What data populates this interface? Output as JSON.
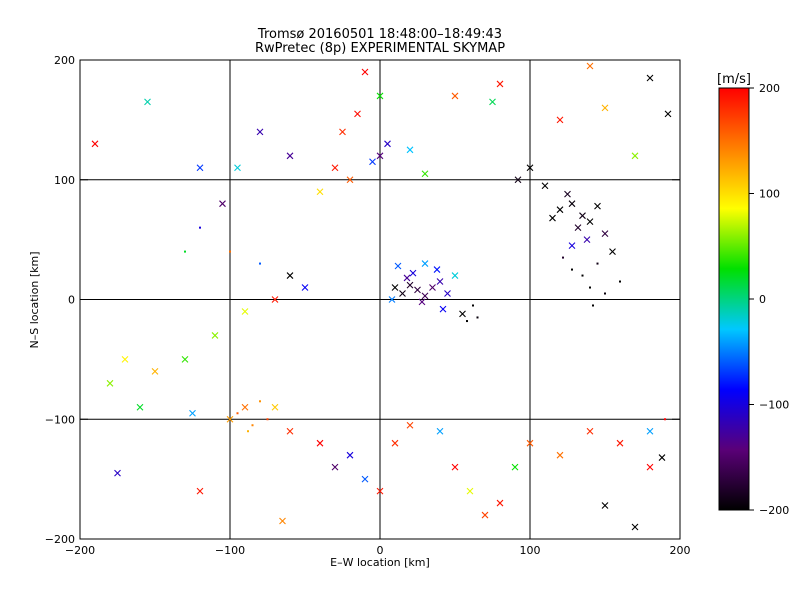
{
  "chart_data": {
    "type": "scatter",
    "title": "Tromsø 20160501 18:48:00–18:49:43",
    "subtitle": "RwPretec (8p) EXPERIMENTAL SKYMAP",
    "xlabel": "E–W location [km]",
    "ylabel": "N–S location [km]",
    "xlim": [
      -200,
      200
    ],
    "ylim": [
      -200,
      200
    ],
    "xticks": [
      -200,
      -100,
      0,
      100,
      200
    ],
    "yticks": [
      -200,
      -100,
      0,
      100,
      200
    ],
    "grid": true,
    "colorbar": {
      "label": "[m/s]",
      "range": [
        -200,
        200
      ],
      "ticks": [
        200,
        100,
        0,
        -100,
        -200
      ],
      "colors": [
        "#000000",
        "#5a0078",
        "#0000ff",
        "#00c8ff",
        "#00e000",
        "#ffff00",
        "#ff8000",
        "#ff0000"
      ]
    },
    "marker_types": [
      "x",
      "dot"
    ],
    "points": [
      {
        "x": 120,
        "y": 75,
        "v": -200,
        "m": "x"
      },
      {
        "x": 128,
        "y": 80,
        "v": -195,
        "m": "x"
      },
      {
        "x": 135,
        "y": 70,
        "v": -190,
        "m": "x"
      },
      {
        "x": 140,
        "y": 65,
        "v": -200,
        "m": "x"
      },
      {
        "x": 132,
        "y": 60,
        "v": -180,
        "m": "x"
      },
      {
        "x": 115,
        "y": 68,
        "v": -200,
        "m": "x"
      },
      {
        "x": 125,
        "y": 88,
        "v": -185,
        "m": "x"
      },
      {
        "x": 145,
        "y": 78,
        "v": -200,
        "m": "x"
      },
      {
        "x": 150,
        "y": 55,
        "v": -170,
        "m": "x"
      },
      {
        "x": 110,
        "y": 95,
        "v": -200,
        "m": "x"
      },
      {
        "x": 138,
        "y": 50,
        "v": -120,
        "m": "x"
      },
      {
        "x": 128,
        "y": 45,
        "v": -100,
        "m": "x"
      },
      {
        "x": 135,
        "y": 20,
        "v": -200,
        "m": "dot"
      },
      {
        "x": 140,
        "y": 10,
        "v": -200,
        "m": "dot"
      },
      {
        "x": 150,
        "y": 5,
        "v": -195,
        "m": "dot"
      },
      {
        "x": 128,
        "y": 25,
        "v": -200,
        "m": "dot"
      },
      {
        "x": 145,
        "y": 30,
        "v": -190,
        "m": "dot"
      },
      {
        "x": 160,
        "y": 15,
        "v": -200,
        "m": "dot"
      },
      {
        "x": 142,
        "y": -5,
        "v": -200,
        "m": "dot"
      },
      {
        "x": 122,
        "y": 35,
        "v": -180,
        "m": "dot"
      },
      {
        "x": 155,
        "y": 40,
        "v": -200,
        "m": "x"
      },
      {
        "x": 100,
        "y": 110,
        "v": -200,
        "m": "x"
      },
      {
        "x": 92,
        "y": 100,
        "v": -190,
        "m": "x"
      },
      {
        "x": 180,
        "y": 185,
        "v": -200,
        "m": "x"
      },
      {
        "x": 192,
        "y": 155,
        "v": -200,
        "m": "x"
      },
      {
        "x": 170,
        "y": -190,
        "v": -200,
        "m": "x"
      },
      {
        "x": 150,
        "y": -172,
        "v": -200,
        "m": "x"
      },
      {
        "x": 188,
        "y": -132,
        "v": -200,
        "m": "x"
      },
      {
        "x": 10,
        "y": 10,
        "v": -200,
        "m": "x"
      },
      {
        "x": 15,
        "y": 5,
        "v": -190,
        "m": "x"
      },
      {
        "x": 20,
        "y": 12,
        "v": -180,
        "m": "x"
      },
      {
        "x": 25,
        "y": 8,
        "v": -170,
        "m": "x"
      },
      {
        "x": 30,
        "y": 3,
        "v": -160,
        "m": "x"
      },
      {
        "x": 35,
        "y": 10,
        "v": -150,
        "m": "x"
      },
      {
        "x": 28,
        "y": -2,
        "v": -140,
        "m": "x"
      },
      {
        "x": 18,
        "y": 18,
        "v": -130,
        "m": "x"
      },
      {
        "x": 40,
        "y": 15,
        "v": -120,
        "m": "x"
      },
      {
        "x": 45,
        "y": 5,
        "v": -110,
        "m": "x"
      },
      {
        "x": 22,
        "y": 22,
        "v": -100,
        "m": "x"
      },
      {
        "x": 38,
        "y": 25,
        "v": -80,
        "m": "x"
      },
      {
        "x": 12,
        "y": 28,
        "v": -60,
        "m": "x"
      },
      {
        "x": 30,
        "y": 30,
        "v": -40,
        "m": "x"
      },
      {
        "x": 50,
        "y": 20,
        "v": -20,
        "m": "x"
      },
      {
        "x": 8,
        "y": 0,
        "v": -50,
        "m": "x"
      },
      {
        "x": 42,
        "y": -8,
        "v": -90,
        "m": "x"
      },
      {
        "x": 55,
        "y": -12,
        "v": -200,
        "m": "x"
      },
      {
        "x": 58,
        "y": -18,
        "v": -200,
        "m": "dot"
      },
      {
        "x": 62,
        "y": -5,
        "v": -200,
        "m": "dot"
      },
      {
        "x": 65,
        "y": -15,
        "v": -195,
        "m": "dot"
      },
      {
        "x": 0,
        "y": 120,
        "v": -140,
        "m": "x"
      },
      {
        "x": 5,
        "y": 130,
        "v": -110,
        "m": "x"
      },
      {
        "x": -5,
        "y": 115,
        "v": -70,
        "m": "x"
      },
      {
        "x": 20,
        "y": 125,
        "v": -30,
        "m": "x"
      },
      {
        "x": 30,
        "y": 105,
        "v": 40,
        "m": "x"
      },
      {
        "x": -20,
        "y": 100,
        "v": 160,
        "m": "x"
      },
      {
        "x": -30,
        "y": 110,
        "v": 190,
        "m": "x"
      },
      {
        "x": -25,
        "y": 140,
        "v": 180,
        "m": "x"
      },
      {
        "x": -15,
        "y": 155,
        "v": 195,
        "m": "x"
      },
      {
        "x": -40,
        "y": 90,
        "v": 100,
        "m": "x"
      },
      {
        "x": -60,
        "y": 120,
        "v": -130,
        "m": "x"
      },
      {
        "x": -80,
        "y": 140,
        "v": -120,
        "m": "x"
      },
      {
        "x": -95,
        "y": 110,
        "v": -20,
        "m": "x"
      },
      {
        "x": -105,
        "y": 80,
        "v": -150,
        "m": "x"
      },
      {
        "x": -120,
        "y": 60,
        "v": -100,
        "m": "dot"
      },
      {
        "x": -130,
        "y": 40,
        "v": 20,
        "m": "dot"
      },
      {
        "x": -100,
        "y": 40,
        "v": 150,
        "m": "dot"
      },
      {
        "x": -80,
        "y": 30,
        "v": -60,
        "m": "dot"
      },
      {
        "x": -60,
        "y": 20,
        "v": -200,
        "m": "x"
      },
      {
        "x": -50,
        "y": 10,
        "v": -90,
        "m": "x"
      },
      {
        "x": -70,
        "y": 0,
        "v": 190,
        "m": "x"
      },
      {
        "x": -90,
        "y": -10,
        "v": 80,
        "m": "x"
      },
      {
        "x": -110,
        "y": -30,
        "v": 60,
        "m": "x"
      },
      {
        "x": -130,
        "y": -50,
        "v": 40,
        "m": "x"
      },
      {
        "x": -150,
        "y": -60,
        "v": 120,
        "m": "x"
      },
      {
        "x": -170,
        "y": -50,
        "v": 90,
        "m": "x"
      },
      {
        "x": -180,
        "y": -70,
        "v": 60,
        "m": "x"
      },
      {
        "x": -160,
        "y": -90,
        "v": 20,
        "m": "x"
      },
      {
        "x": -125,
        "y": -95,
        "v": -40,
        "m": "x"
      },
      {
        "x": -100,
        "y": -100,
        "v": 130,
        "m": "x"
      },
      {
        "x": -90,
        "y": -90,
        "v": 150,
        "m": "x"
      },
      {
        "x": -85,
        "y": -105,
        "v": 140,
        "m": "dot"
      },
      {
        "x": -95,
        "y": -95,
        "v": 160,
        "m": "dot"
      },
      {
        "x": -80,
        "y": -85,
        "v": 135,
        "m": "dot"
      },
      {
        "x": -75,
        "y": -100,
        "v": 170,
        "m": "dot"
      },
      {
        "x": -88,
        "y": -110,
        "v": 120,
        "m": "dot"
      },
      {
        "x": -70,
        "y": -90,
        "v": 110,
        "m": "x"
      },
      {
        "x": -60,
        "y": -110,
        "v": 180,
        "m": "x"
      },
      {
        "x": -40,
        "y": -120,
        "v": 200,
        "m": "x"
      },
      {
        "x": -30,
        "y": -140,
        "v": -150,
        "m": "x"
      },
      {
        "x": -20,
        "y": -130,
        "v": -100,
        "m": "x"
      },
      {
        "x": -10,
        "y": -150,
        "v": -60,
        "m": "x"
      },
      {
        "x": 0,
        "y": -160,
        "v": 190,
        "m": "x"
      },
      {
        "x": 10,
        "y": -120,
        "v": 180,
        "m": "x"
      },
      {
        "x": 20,
        "y": -105,
        "v": 170,
        "m": "x"
      },
      {
        "x": 40,
        "y": -110,
        "v": -40,
        "m": "x"
      },
      {
        "x": 50,
        "y": -140,
        "v": 200,
        "m": "x"
      },
      {
        "x": 60,
        "y": -160,
        "v": 80,
        "m": "x"
      },
      {
        "x": 70,
        "y": -180,
        "v": 170,
        "m": "x"
      },
      {
        "x": 80,
        "y": -170,
        "v": 190,
        "m": "x"
      },
      {
        "x": 90,
        "y": -140,
        "v": 30,
        "m": "x"
      },
      {
        "x": 100,
        "y": -120,
        "v": 160,
        "m": "x"
      },
      {
        "x": 120,
        "y": -130,
        "v": 150,
        "m": "x"
      },
      {
        "x": 140,
        "y": -110,
        "v": 180,
        "m": "x"
      },
      {
        "x": 160,
        "y": -120,
        "v": 190,
        "m": "x"
      },
      {
        "x": 180,
        "y": -140,
        "v": 200,
        "m": "x"
      },
      {
        "x": -190,
        "y": 130,
        "v": 200,
        "m": "x"
      },
      {
        "x": -155,
        "y": 165,
        "v": -10,
        "m": "x"
      },
      {
        "x": -120,
        "y": 110,
        "v": -70,
        "m": "x"
      },
      {
        "x": -175,
        "y": -145,
        "v": -110,
        "m": "x"
      },
      {
        "x": -120,
        "y": -160,
        "v": 190,
        "m": "x"
      },
      {
        "x": -65,
        "y": -185,
        "v": 140,
        "m": "x"
      },
      {
        "x": 120,
        "y": 150,
        "v": 190,
        "m": "x"
      },
      {
        "x": 150,
        "y": 160,
        "v": 120,
        "m": "x"
      },
      {
        "x": 170,
        "y": 120,
        "v": 60,
        "m": "x"
      },
      {
        "x": 180,
        "y": -110,
        "v": -40,
        "m": "x"
      },
      {
        "x": 190,
        "y": -100,
        "v": 200,
        "m": "dot"
      },
      {
        "x": 80,
        "y": 180,
        "v": 190,
        "m": "x"
      },
      {
        "x": 50,
        "y": 170,
        "v": 160,
        "m": "x"
      },
      {
        "x": 75,
        "y": 165,
        "v": 10,
        "m": "x"
      },
      {
        "x": -10,
        "y": 190,
        "v": 200,
        "m": "x"
      },
      {
        "x": 0,
        "y": 170,
        "v": 30,
        "m": "x"
      },
      {
        "x": 140,
        "y": 195,
        "v": 150,
        "m": "x"
      }
    ]
  }
}
